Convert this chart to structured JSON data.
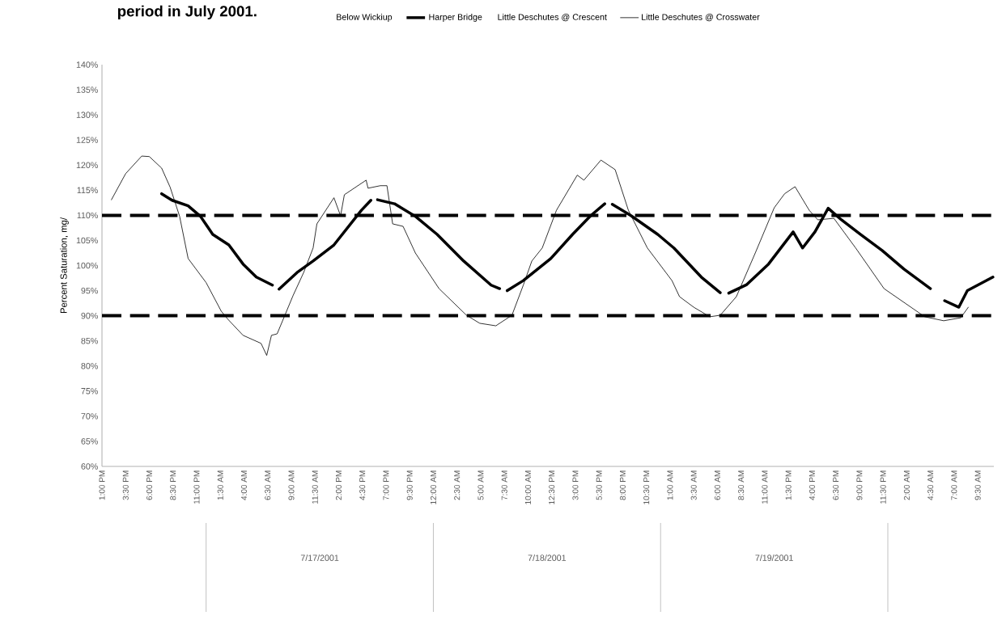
{
  "chart_data": {
    "type": "line",
    "title": "period in July 2001.",
    "ylabel": "Percent Saturation, mg/",
    "xlim": [
      "2001-07-16T13:00",
      "2001-07-20T11:12"
    ],
    "ylim": [
      60,
      140
    ],
    "xticks": [
      {
        "value": "2001-07-16T13:00",
        "label": "1:00 PM"
      },
      {
        "value": "2001-07-16T15:30",
        "label": "3:30 PM"
      },
      {
        "value": "2001-07-16T18:00",
        "label": "6:00 PM"
      },
      {
        "value": "2001-07-16T20:30",
        "label": "8:30 PM"
      },
      {
        "value": "2001-07-16T23:00",
        "label": "11:00 PM"
      },
      {
        "value": "2001-07-17T01:30",
        "label": "1:30 AM"
      },
      {
        "value": "2001-07-17T04:00",
        "label": "4:00 AM"
      },
      {
        "value": "2001-07-17T06:30",
        "label": "6:30 AM"
      },
      {
        "value": "2001-07-17T09:00",
        "label": "9:00 AM"
      },
      {
        "value": "2001-07-17T11:30",
        "label": "11:30 AM"
      },
      {
        "value": "2001-07-17T14:00",
        "label": "2:00 PM"
      },
      {
        "value": "2001-07-17T16:30",
        "label": "4:30 PM"
      },
      {
        "value": "2001-07-17T19:00",
        "label": "7:00 PM"
      },
      {
        "value": "2001-07-17T21:30",
        "label": "9:30 PM"
      },
      {
        "value": "2001-07-18T00:00",
        "label": "12:00 AM"
      },
      {
        "value": "2001-07-18T02:30",
        "label": "2:30 AM"
      },
      {
        "value": "2001-07-18T05:00",
        "label": "5:00 AM"
      },
      {
        "value": "2001-07-18T07:30",
        "label": "7:30 AM"
      },
      {
        "value": "2001-07-18T10:00",
        "label": "10:00 AM"
      },
      {
        "value": "2001-07-18T12:30",
        "label": "12:30 PM"
      },
      {
        "value": "2001-07-18T15:00",
        "label": "3:00 PM"
      },
      {
        "value": "2001-07-18T17:30",
        "label": "5:30 PM"
      },
      {
        "value": "2001-07-18T20:00",
        "label": "8:00 PM"
      },
      {
        "value": "2001-07-18T22:30",
        "label": "10:30 PM"
      },
      {
        "value": "2001-07-19T01:00",
        "label": "1:00 AM"
      },
      {
        "value": "2001-07-19T03:30",
        "label": "3:30 AM"
      },
      {
        "value": "2001-07-19T06:00",
        "label": "6:00 AM"
      },
      {
        "value": "2001-07-19T08:30",
        "label": "8:30 AM"
      },
      {
        "value": "2001-07-19T11:00",
        "label": "11:00 AM"
      },
      {
        "value": "2001-07-19T13:30",
        "label": "1:30 PM"
      },
      {
        "value": "2001-07-19T16:00",
        "label": "4:00 PM"
      },
      {
        "value": "2001-07-19T18:30",
        "label": "6:30 PM"
      },
      {
        "value": "2001-07-19T21:00",
        "label": "9:00 PM"
      },
      {
        "value": "2001-07-19T23:30",
        "label": "11:30 PM"
      },
      {
        "value": "2001-07-20T02:00",
        "label": "2:00 AM"
      },
      {
        "value": "2001-07-20T04:30",
        "label": "4:30 AM"
      },
      {
        "value": "2001-07-20T07:00",
        "label": "7:00 AM"
      },
      {
        "value": "2001-07-20T09:30",
        "label": "9:30 AM"
      }
    ],
    "yticks": [
      {
        "value": 60,
        "label": "60%"
      },
      {
        "value": 65,
        "label": "65%"
      },
      {
        "value": 70,
        "label": "70%"
      },
      {
        "value": 75,
        "label": "75%"
      },
      {
        "value": 80,
        "label": "80%"
      },
      {
        "value": 85,
        "label": "85%"
      },
      {
        "value": 90,
        "label": "90%"
      },
      {
        "value": 95,
        "label": "95%"
      },
      {
        "value": 100,
        "label": "100%"
      },
      {
        "value": 105,
        "label": "105%"
      },
      {
        "value": 110,
        "label": "110%"
      },
      {
        "value": 115,
        "label": "115%"
      },
      {
        "value": 120,
        "label": "120%"
      },
      {
        "value": 125,
        "label": "125%"
      },
      {
        "value": 130,
        "label": "130%"
      },
      {
        "value": 135,
        "label": "135%"
      },
      {
        "value": 140,
        "label": "140%"
      }
    ],
    "series": [
      {
        "name": "Below Wickiup"
      },
      {
        "name": "Harper Bridge",
        "color": "#000000",
        "x": [
          "2001-07-16T19:18",
          "2001-07-16T20:24",
          "2001-07-16T22:06",
          "2001-07-16T23:24",
          "2001-07-17T00:42",
          "2001-07-17T02:24",
          "2001-07-17T03:54",
          "2001-07-17T05:18",
          "2001-07-17T07:00",
          "2001-07-17T07:21",
          "2001-07-17T07:42",
          "2001-07-17T09:36",
          "2001-07-17T11:18",
          "2001-07-17T13:30",
          "2001-07-17T16:24",
          "2001-07-17T17:24",
          "2001-07-17T17:45",
          "2001-07-17T18:06",
          "2001-07-17T19:54",
          "2001-07-17T22:06",
          "2001-07-18T00:24",
          "2001-07-18T03:12",
          "2001-07-18T06:06",
          "2001-07-18T07:00",
          "2001-07-18T07:24",
          "2001-07-18T07:48",
          "2001-07-18T09:30",
          "2001-07-18T12:24",
          "2001-07-18T14:42",
          "2001-07-18T16:36",
          "2001-07-18T18:06",
          "2001-07-18T18:30",
          "2001-07-18T18:54",
          "2001-07-18T20:54",
          "2001-07-18T23:42",
          "2001-07-19T01:24",
          "2001-07-19T04:18",
          "2001-07-19T06:18",
          "2001-07-19T06:45",
          "2001-07-19T07:12",
          "2001-07-19T09:06",
          "2001-07-19T11:24",
          "2001-07-19T14:00",
          "2001-07-19T15:00",
          "2001-07-19T16:18",
          "2001-07-19T17:42",
          "2001-07-19T19:06",
          "2001-07-19T21:06",
          "2001-07-19T23:24",
          "2001-07-20T01:42",
          "2001-07-20T04:30",
          "2001-07-20T05:15",
          "2001-07-20T06:00",
          "2001-07-20T07:30",
          "2001-07-20T08:24",
          "2001-07-20T11:06"
        ],
        "values": [
          114.3,
          113.0,
          111.9,
          109.8,
          106.2,
          104.1,
          100.3,
          97.7,
          96.1,
          null,
          95.3,
          98.6,
          100.9,
          104.1,
          111.0,
          113.0,
          null,
          113.1,
          112.3,
          109.8,
          106.2,
          100.9,
          96.1,
          95.4,
          null,
          95.0,
          97.0,
          101.4,
          106.2,
          109.9,
          112.3,
          null,
          112.2,
          109.9,
          106.2,
          103.5,
          97.7,
          94.6,
          null,
          94.5,
          96.2,
          100.3,
          106.7,
          103.5,
          106.7,
          111.4,
          109.1,
          106.2,
          103.0,
          99.3,
          95.4,
          null,
          93.0,
          91.7,
          95.0,
          97.7
        ]
      },
      {
        "name": "Little Deschutes @ Crescent"
      },
      {
        "name": "Little Deschutes @ Crosswater",
        "color": "#000000",
        "x": [
          "2001-07-16T14:00",
          "2001-07-16T15:30",
          "2001-07-16T17:12",
          "2001-07-16T18:00",
          "2001-07-16T19:18",
          "2001-07-16T20:12",
          "2001-07-16T21:12",
          "2001-07-16T22:06",
          "2001-07-17T00:00",
          "2001-07-17T01:36",
          "2001-07-17T02:18",
          "2001-07-17T03:54",
          "2001-07-17T05:48",
          "2001-07-17T06:24",
          "2001-07-17T06:54",
          "2001-07-17T07:30",
          "2001-07-17T09:12",
          "2001-07-17T10:18",
          "2001-07-17T11:18",
          "2001-07-17T11:42",
          "2001-07-17T13:30",
          "2001-07-17T14:12",
          "2001-07-17T14:36",
          "2001-07-17T16:54",
          "2001-07-17T17:06",
          "2001-07-17T18:24",
          "2001-07-17T19:06",
          "2001-07-17T19:42",
          "2001-07-17T20:48",
          "2001-07-17T22:06",
          "2001-07-18T00:36",
          "2001-07-18T03:30",
          "2001-07-18T04:54",
          "2001-07-18T06:36",
          "2001-07-18T08:18",
          "2001-07-18T09:30",
          "2001-07-18T10:24",
          "2001-07-18T11:30",
          "2001-07-18T13:00",
          "2001-07-18T15:12",
          "2001-07-18T15:54",
          "2001-07-18T17:42",
          "2001-07-18T19:12",
          "2001-07-18T20:36",
          "2001-07-18T22:36",
          "2001-07-19T01:12",
          "2001-07-19T02:00",
          "2001-07-19T03:30",
          "2001-07-19T05:12",
          "2001-07-19T06:18",
          "2001-07-19T08:00",
          "2001-07-19T10:00",
          "2001-07-19T12:00",
          "2001-07-19T13:06",
          "2001-07-19T14:12",
          "2001-07-19T15:42",
          "2001-07-19T16:36",
          "2001-07-19T18:18",
          "2001-07-19T20:36",
          "2001-07-19T23:36",
          "2001-07-20T03:54",
          "2001-07-20T05:54",
          "2001-07-20T07:42",
          "2001-07-20T08:30"
        ],
        "values": [
          113.1,
          118.3,
          121.8,
          121.7,
          119.4,
          115.6,
          109.8,
          101.4,
          96.6,
          90.9,
          89.3,
          86.1,
          84.5,
          82.1,
          86.1,
          86.4,
          94.1,
          98.6,
          103.5,
          108.3,
          113.5,
          109.9,
          114.1,
          117.0,
          115.4,
          115.9,
          115.9,
          108.3,
          107.8,
          102.5,
          95.4,
          90.1,
          88.5,
          88.0,
          90.1,
          96.1,
          100.9,
          103.5,
          111.0,
          118.0,
          117.0,
          121.0,
          119.1,
          111.0,
          103.5,
          97.0,
          93.8,
          91.7,
          89.8,
          90.1,
          93.8,
          102.5,
          111.5,
          114.3,
          115.7,
          111.0,
          109.1,
          109.4,
          103.5,
          95.4,
          89.8,
          89.0,
          89.6,
          91.7
        ]
      }
    ],
    "ref_lines": [
      {
        "axis": "y",
        "value": 110,
        "color": "#000000",
        "line_style": "dashed"
      },
      {
        "axis": "y",
        "value": 90,
        "color": "#000000",
        "line_style": "dashed"
      }
    ],
    "annotations": [
      "7/17/2001",
      "7/18/2001",
      "7/19/2001"
    ],
    "grid": false,
    "legend": "top",
    "marker": "none",
    "line_style": "solid"
  }
}
